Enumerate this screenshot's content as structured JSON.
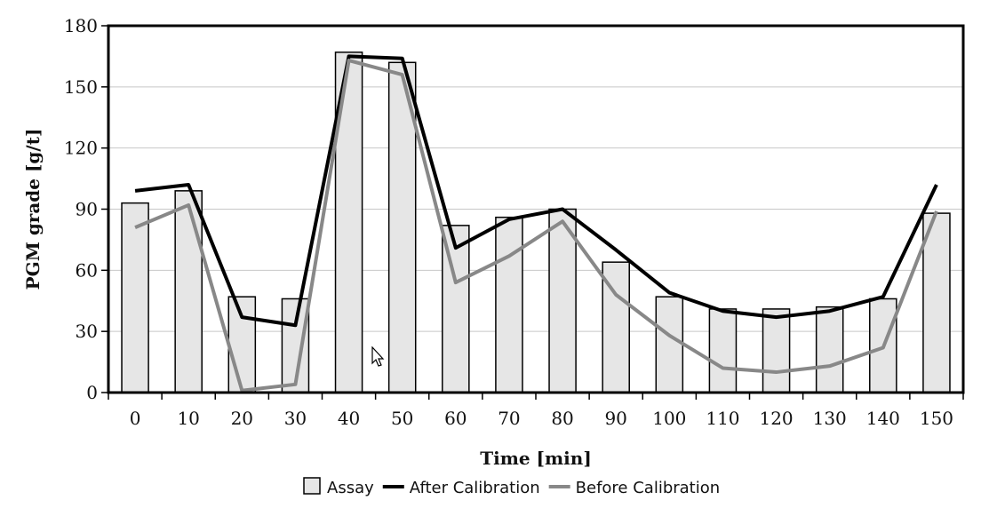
{
  "chart_data": {
    "type": "bar",
    "xlabel": "Time [min]",
    "ylabel": "PGM grade [g/t]",
    "categories": [
      "0",
      "10",
      "20",
      "30",
      "40",
      "50",
      "60",
      "70",
      "80",
      "90",
      "100",
      "110",
      "120",
      "130",
      "140",
      "150"
    ],
    "ylim": [
      0,
      180
    ],
    "yticks": [
      0,
      30,
      60,
      90,
      120,
      150,
      180
    ],
    "grid": true,
    "legend_position": "bottom",
    "series": [
      {
        "name": "Assay",
        "kind": "bar",
        "color": "#e6e6e6",
        "values": [
          93,
          99,
          47,
          46,
          167,
          162,
          82,
          86,
          90,
          64,
          47,
          41,
          41,
          42,
          46,
          88
        ]
      },
      {
        "name": "After Calibration",
        "kind": "line",
        "color": "#000000",
        "values": [
          99,
          102,
          37,
          33,
          165,
          164,
          71,
          85,
          90,
          70,
          49,
          40,
          37,
          40,
          47,
          102
        ]
      },
      {
        "name": "Before Calibration",
        "kind": "line",
        "color": "#888888",
        "values": [
          81,
          92,
          1,
          4,
          163,
          156,
          54,
          67,
          84,
          48,
          28,
          12,
          10,
          13,
          22,
          89
        ]
      }
    ]
  }
}
